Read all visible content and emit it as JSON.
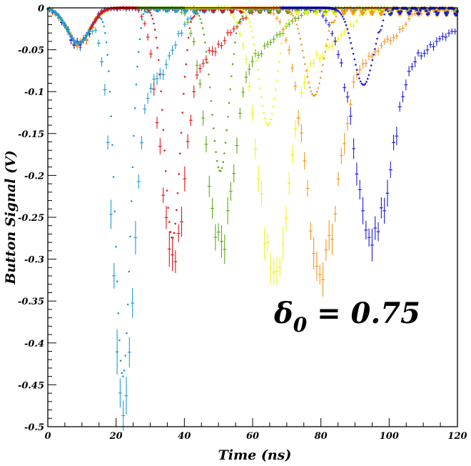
{
  "chart_data": {
    "type": "scatter",
    "xlabel": "Time (ns)",
    "ylabel": "Button Signal (V)",
    "xlim": [
      0,
      120
    ],
    "ylim": [
      -0.5,
      0
    ],
    "x_ticks": [
      "0",
      "20",
      "40",
      "60",
      "80",
      "100",
      "120"
    ],
    "y_ticks": [
      "0",
      "-0.05",
      "-0.1",
      "-0.15",
      "-0.2",
      "-0.25",
      "-0.3",
      "-0.35",
      "-0.4",
      "-0.45",
      "-0.5"
    ],
    "annotation": {
      "symbol": "δ",
      "subscript": "0",
      "text": " = 0.75"
    },
    "grid": false,
    "series": [
      {
        "color": "#1e9bd0",
        "kind": "simulation",
        "peak_time": 22,
        "peak_value": -0.44
      },
      {
        "color": "#1e9bd0",
        "kind": "measurement",
        "peak_time": 22,
        "peak_value": -0.47
      },
      {
        "color": "#e0161b",
        "kind": "simulation",
        "peak_time": 36.5,
        "peak_value": -0.275
      },
      {
        "color": "#e0161b",
        "kind": "measurement",
        "peak_time": 36.5,
        "peak_value": -0.29
      },
      {
        "color": "#5eaa1b",
        "kind": "simulation",
        "peak_time": 50.5,
        "peak_value": -0.195
      },
      {
        "color": "#5eaa1b",
        "kind": "measurement",
        "peak_time": 50.5,
        "peak_value": -0.27
      },
      {
        "color": "#f2f21a",
        "kind": "simulation",
        "peak_time": 64.5,
        "peak_value": -0.14
      },
      {
        "color": "#f2f21a",
        "kind": "measurement",
        "peak_time": 66,
        "peak_value": -0.3
      },
      {
        "color": "#f5961f",
        "kind": "simulation",
        "peak_time": 78,
        "peak_value": -0.105
      },
      {
        "color": "#f5961f",
        "kind": "measurement",
        "peak_time": 80,
        "peak_value": -0.29
      },
      {
        "color": "#1a1adc",
        "kind": "simulation",
        "peak_time": 92.5,
        "peak_value": -0.092
      },
      {
        "color": "#1a1adc",
        "kind": "measurement",
        "peak_time": 95,
        "peak_value": -0.255
      }
    ]
  }
}
